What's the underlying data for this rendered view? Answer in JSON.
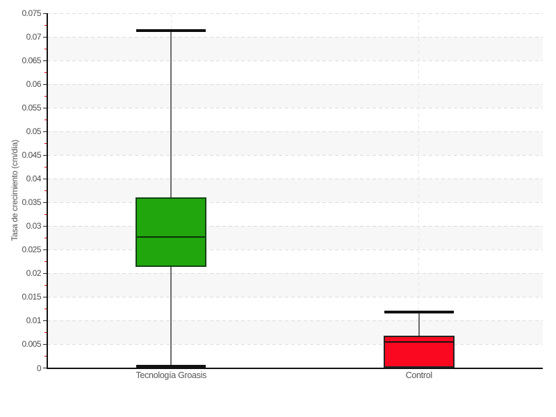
{
  "chart_data": {
    "type": "box",
    "title": "",
    "xlabel": "",
    "ylabel": "Tasa de crecimiento (cm/día)",
    "ylim": [
      0,
      0.075
    ],
    "y_major_step": 0.005,
    "y_minor_step": 0.0025,
    "y_tick_labels": [
      "0",
      "0.005",
      "0.01",
      "0.015",
      "0.02",
      "0.025",
      "0.03",
      "0.035",
      "0.04",
      "0.045",
      "0.05",
      "0.055",
      "0.06",
      "0.065",
      "0.07",
      "0.075"
    ],
    "grid": "horizontal dashed major gridlines, alternating background bands every 0.005, faint dashed vertical line at each category",
    "legend_position": "none",
    "categories": [
      "Tecnología Groasis",
      "Control"
    ],
    "series": [
      {
        "name": "Tecnología Groasis",
        "whisker_low": 0.0004,
        "q1": 0.0214,
        "median": 0.0277,
        "q3": 0.036,
        "whisker_high": 0.0713,
        "fill_color": "#22a60e",
        "border_color": "#134413",
        "median_color": "#0b320b"
      },
      {
        "name": "Control",
        "whisker_low": 0,
        "q1": 0,
        "median": 0.0055,
        "q3": 0.0069,
        "whisker_high": 0.0119,
        "fill_color": "#f90820",
        "border_color": "#242424",
        "median_color": "#151515"
      }
    ],
    "style_colors": {
      "band_gray": "#f7f7f7",
      "h_gridline": "#dcdcdc",
      "v_gridline": "#e6e6e6",
      "major_tick": "#222222",
      "minor_tick": "#e00000",
      "axis_line": "#111111",
      "whisker_stem": "#6b6b6b",
      "whisker_cap": "#111111",
      "tick_label_text": "#4d4d4d",
      "category_label_text": "#555555",
      "axis_title_text": "#555555"
    }
  }
}
